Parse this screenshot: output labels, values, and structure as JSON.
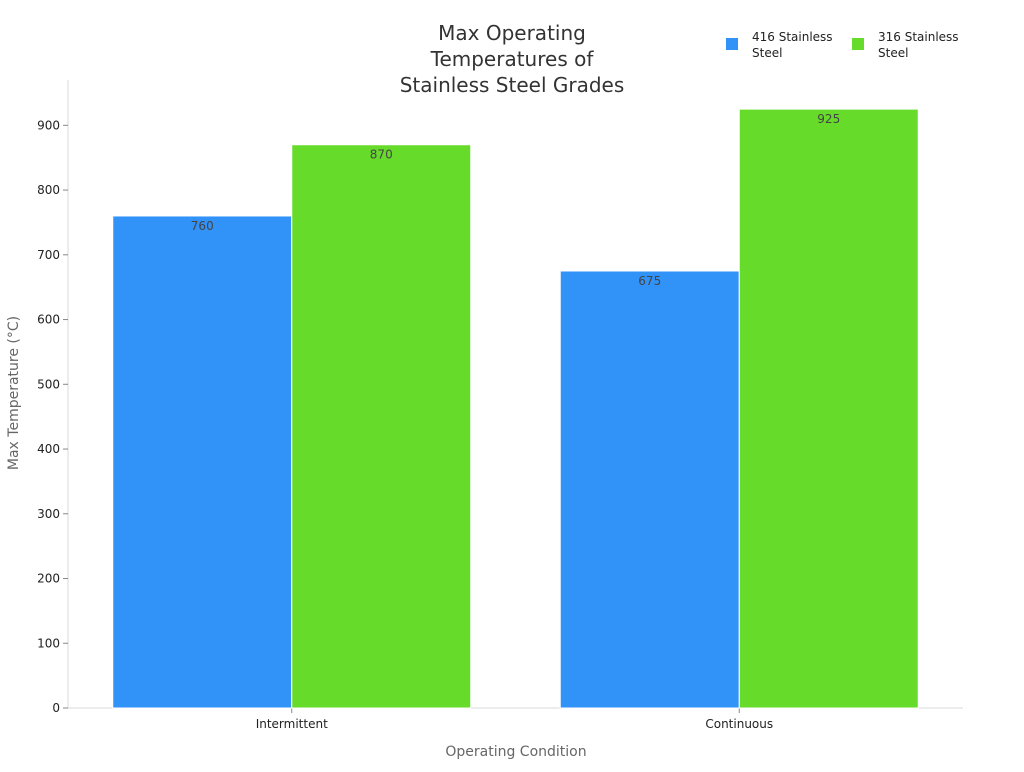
{
  "chart_data": {
    "type": "bar",
    "title": "Max Operating Temperatures of Stainless Steel Grades",
    "title_lines": [
      "Max Operating",
      "Temperatures of",
      "Stainless Steel Grades"
    ],
    "xlabel": "Operating Condition",
    "ylabel": "Max Temperature (°C)",
    "categories": [
      "Intermittent",
      "Continuous"
    ],
    "series": [
      {
        "name": "416 Stainless Steel",
        "legend_lines": [
          "416 Stainless",
          "Steel"
        ],
        "color": "#3192f8",
        "values": [
          760,
          675
        ]
      },
      {
        "name": "316 Stainless Steel",
        "legend_lines": [
          "316 Stainless",
          "Steel"
        ],
        "color": "#66db2a",
        "values": [
          870,
          925
        ]
      }
    ],
    "ylim": [
      0,
      970
    ],
    "yticks": [
      0,
      100,
      200,
      300,
      400,
      500,
      600,
      700,
      800,
      900
    ],
    "grid": false,
    "legend_position": "top-right"
  }
}
